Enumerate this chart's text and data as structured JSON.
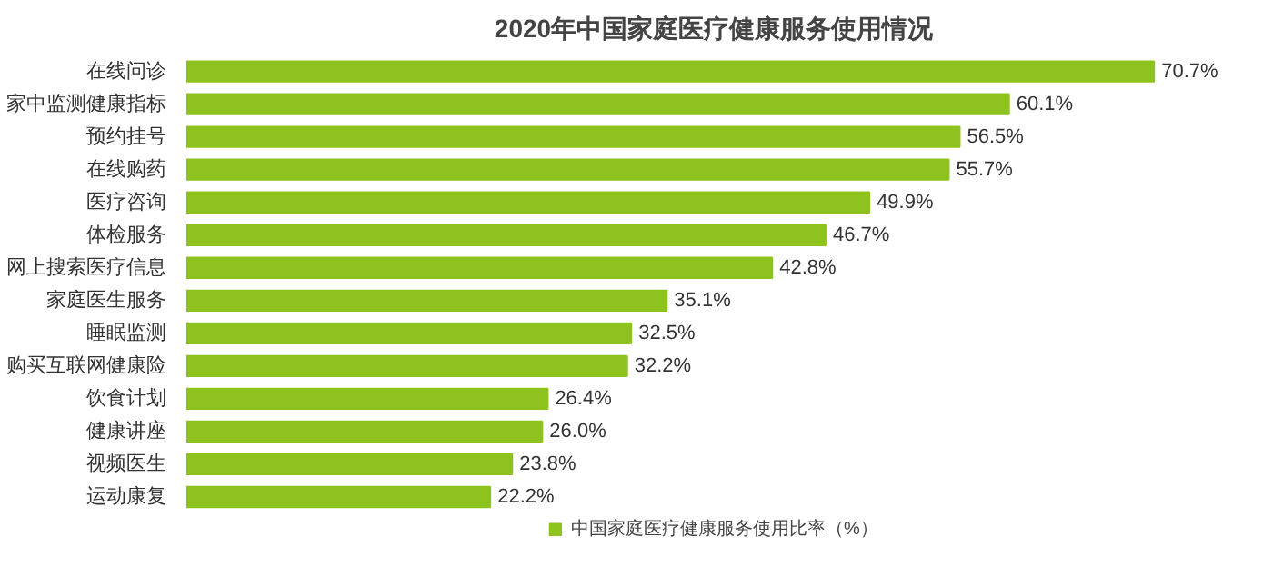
{
  "chart_data": {
    "type": "bar",
    "orientation": "horizontal",
    "title": "2020年中国家庭医疗健康服务使用情况",
    "categories": [
      "在线问诊",
      "家中监测健康指标",
      "预约挂号",
      "在线购药",
      "医疗咨询",
      "体检服务",
      "网上搜索医疗信息",
      "家庭医生服务",
      "睡眠监测",
      "购买互联网健康险",
      "饮食计划",
      "健康讲座",
      "视频医生",
      "运动康复"
    ],
    "series": [
      {
        "name": "中国家庭医疗健康服务使用比率（%）",
        "color": "#8dc21f",
        "values": [
          70.7,
          60.1,
          56.5,
          55.7,
          49.9,
          46.7,
          42.8,
          35.1,
          32.5,
          32.2,
          26.4,
          26.0,
          23.8,
          22.2
        ],
        "value_labels": [
          "70.7%",
          "60.1%",
          "56.5%",
          "55.7%",
          "49.9%",
          "46.7%",
          "42.8%",
          "35.1%",
          "32.5%",
          "32.2%",
          "26.4%",
          "26.0%",
          "23.8%",
          "22.2%"
        ]
      }
    ],
    "legend": "bottom"
  }
}
